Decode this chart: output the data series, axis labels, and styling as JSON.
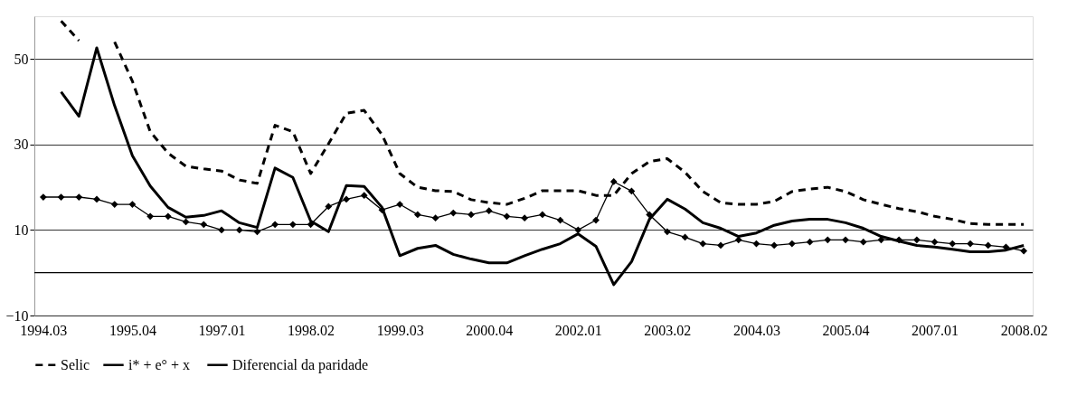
{
  "chart_data": {
    "type": "line",
    "categories": [
      "1994.03",
      null,
      null,
      null,
      null,
      "1995.04",
      null,
      null,
      null,
      null,
      "1997.01",
      null,
      null,
      null,
      null,
      "1998.02",
      null,
      null,
      null,
      null,
      "1999.03",
      null,
      null,
      null,
      null,
      "2000.04",
      null,
      null,
      null,
      null,
      "2002.01",
      null,
      null,
      null,
      null,
      "2003.02",
      null,
      null,
      null,
      null,
      "2004.03",
      null,
      null,
      null,
      null,
      "2005.04",
      null,
      null,
      null,
      null,
      "2007.01",
      null,
      null,
      null,
      null,
      "2008.02"
    ],
    "series": [
      {
        "name": "Selic",
        "color": "#000000",
        "line_style": "dashed",
        "marker": "none",
        "values": [
          null,
          58.9,
          54.3,
          null,
          54,
          44.8,
          33,
          28,
          24.9,
          24.3,
          23.8,
          21.7,
          20.9,
          34.5,
          33,
          23.2,
          30.2,
          37.3,
          38,
          32.3,
          23.2,
          20,
          19.2,
          19,
          17.1,
          16.4,
          16,
          17.4,
          19.2,
          19.2,
          19.2,
          18.1,
          18.1,
          23.2,
          26,
          26.7,
          23.5,
          19,
          16.4,
          16,
          16,
          16.7,
          19,
          19.6,
          20,
          19,
          17.1,
          16,
          15,
          14.3,
          13.2,
          12.5,
          11.5,
          11.3,
          11.3,
          11.3
        ]
      },
      {
        "name": "i* + e° +  x",
        "color": "#000000",
        "line_style": "solid",
        "marker": "diamond",
        "values": [
          17.7,
          17.7,
          17.7,
          17.2,
          16,
          16,
          13.2,
          13.2,
          11.9,
          11.3,
          10,
          10,
          9.6,
          11.3,
          11.3,
          11.3,
          15.5,
          17.2,
          18.1,
          14.7,
          16,
          13.6,
          12.8,
          14,
          13.6,
          14.5,
          13.2,
          12.8,
          13.6,
          12.3,
          10,
          12.3,
          21.3,
          19.1,
          13.6,
          9.6,
          8.3,
          6.8,
          6.4,
          7.7,
          6.8,
          6.4,
          6.8,
          7.2,
          7.7,
          7.7,
          7.2,
          7.7,
          7.7,
          7.7,
          7.2,
          6.8,
          6.8,
          6.4,
          6,
          5.1
        ]
      },
      {
        "name": "Diferencial da paridade",
        "color": "#000000",
        "line_style": "solid",
        "marker": "none",
        "values": [
          null,
          42.3,
          36.6,
          52.6,
          39.1,
          27.4,
          20.3,
          15.3,
          13,
          13.4,
          14.5,
          11.7,
          10.6,
          24.5,
          22.3,
          12.1,
          9.6,
          20.4,
          20.2,
          15.3,
          4,
          5.7,
          6.4,
          4.3,
          3.2,
          2.3,
          2.3,
          4,
          5.5,
          6.8,
          9.1,
          6.2,
          -2.8,
          2.6,
          12.5,
          17.2,
          14.9,
          11.7,
          10.4,
          8.5,
          9.3,
          11.1,
          12.1,
          12.5,
          12.5,
          11.7,
          10.4,
          8.5,
          7.4,
          6.4,
          6,
          5.5,
          4.9,
          4.9,
          5.3,
          6.4
        ]
      }
    ],
    "ylim": [
      -10,
      60
    ],
    "yticks": [
      -10,
      10,
      30,
      50
    ],
    "grid": "y",
    "legend": "bottom",
    "ref_lines": [
      {
        "axis": "y",
        "value": 0,
        "color": "#000000"
      }
    ]
  }
}
